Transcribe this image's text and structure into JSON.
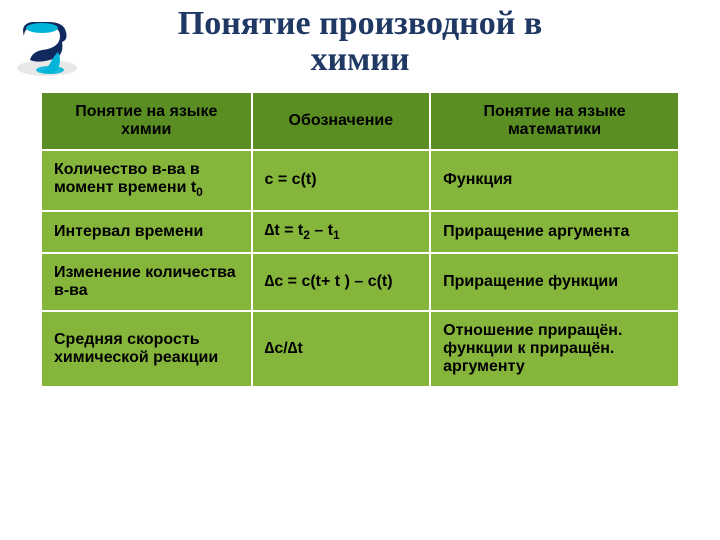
{
  "title": "Понятие производной в\nхимии",
  "title_color": "#203864",
  "title_fontsize": 34,
  "icon": {
    "cup_color": "#102a60",
    "liquid_color": "#00b4d8",
    "surface_color": "#e8e8e8"
  },
  "table": {
    "header_bg": "#5a8e22",
    "row_bg": "#86b53c",
    "border_color": "#ffffff",
    "font_size": 16,
    "columns": [
      "Понятие на языке химии",
      "Обозначение",
      "Понятие на языке математики"
    ],
    "rows": [
      {
        "c1": "Количество в-ва в момент времени t",
        "c1_sub": "0",
        "c2": "c = c(t)",
        "c3": "Функция"
      },
      {
        "c1": "Интервал времени",
        "c2_html": "∆t = t<sub>2</sub> – t<sub>1</sub>",
        "c3": "Приращение аргумента"
      },
      {
        "c1": "Изменение количества в-ва",
        "c2": "∆c = c(t+  t ) – c(t)",
        "c3": "Приращение функции"
      },
      {
        "c1": "Средняя скорость химической реакции",
        "c2": "∆c/∆t",
        "c3": "Отношение приращён. функции к приращён. аргументу"
      }
    ]
  }
}
